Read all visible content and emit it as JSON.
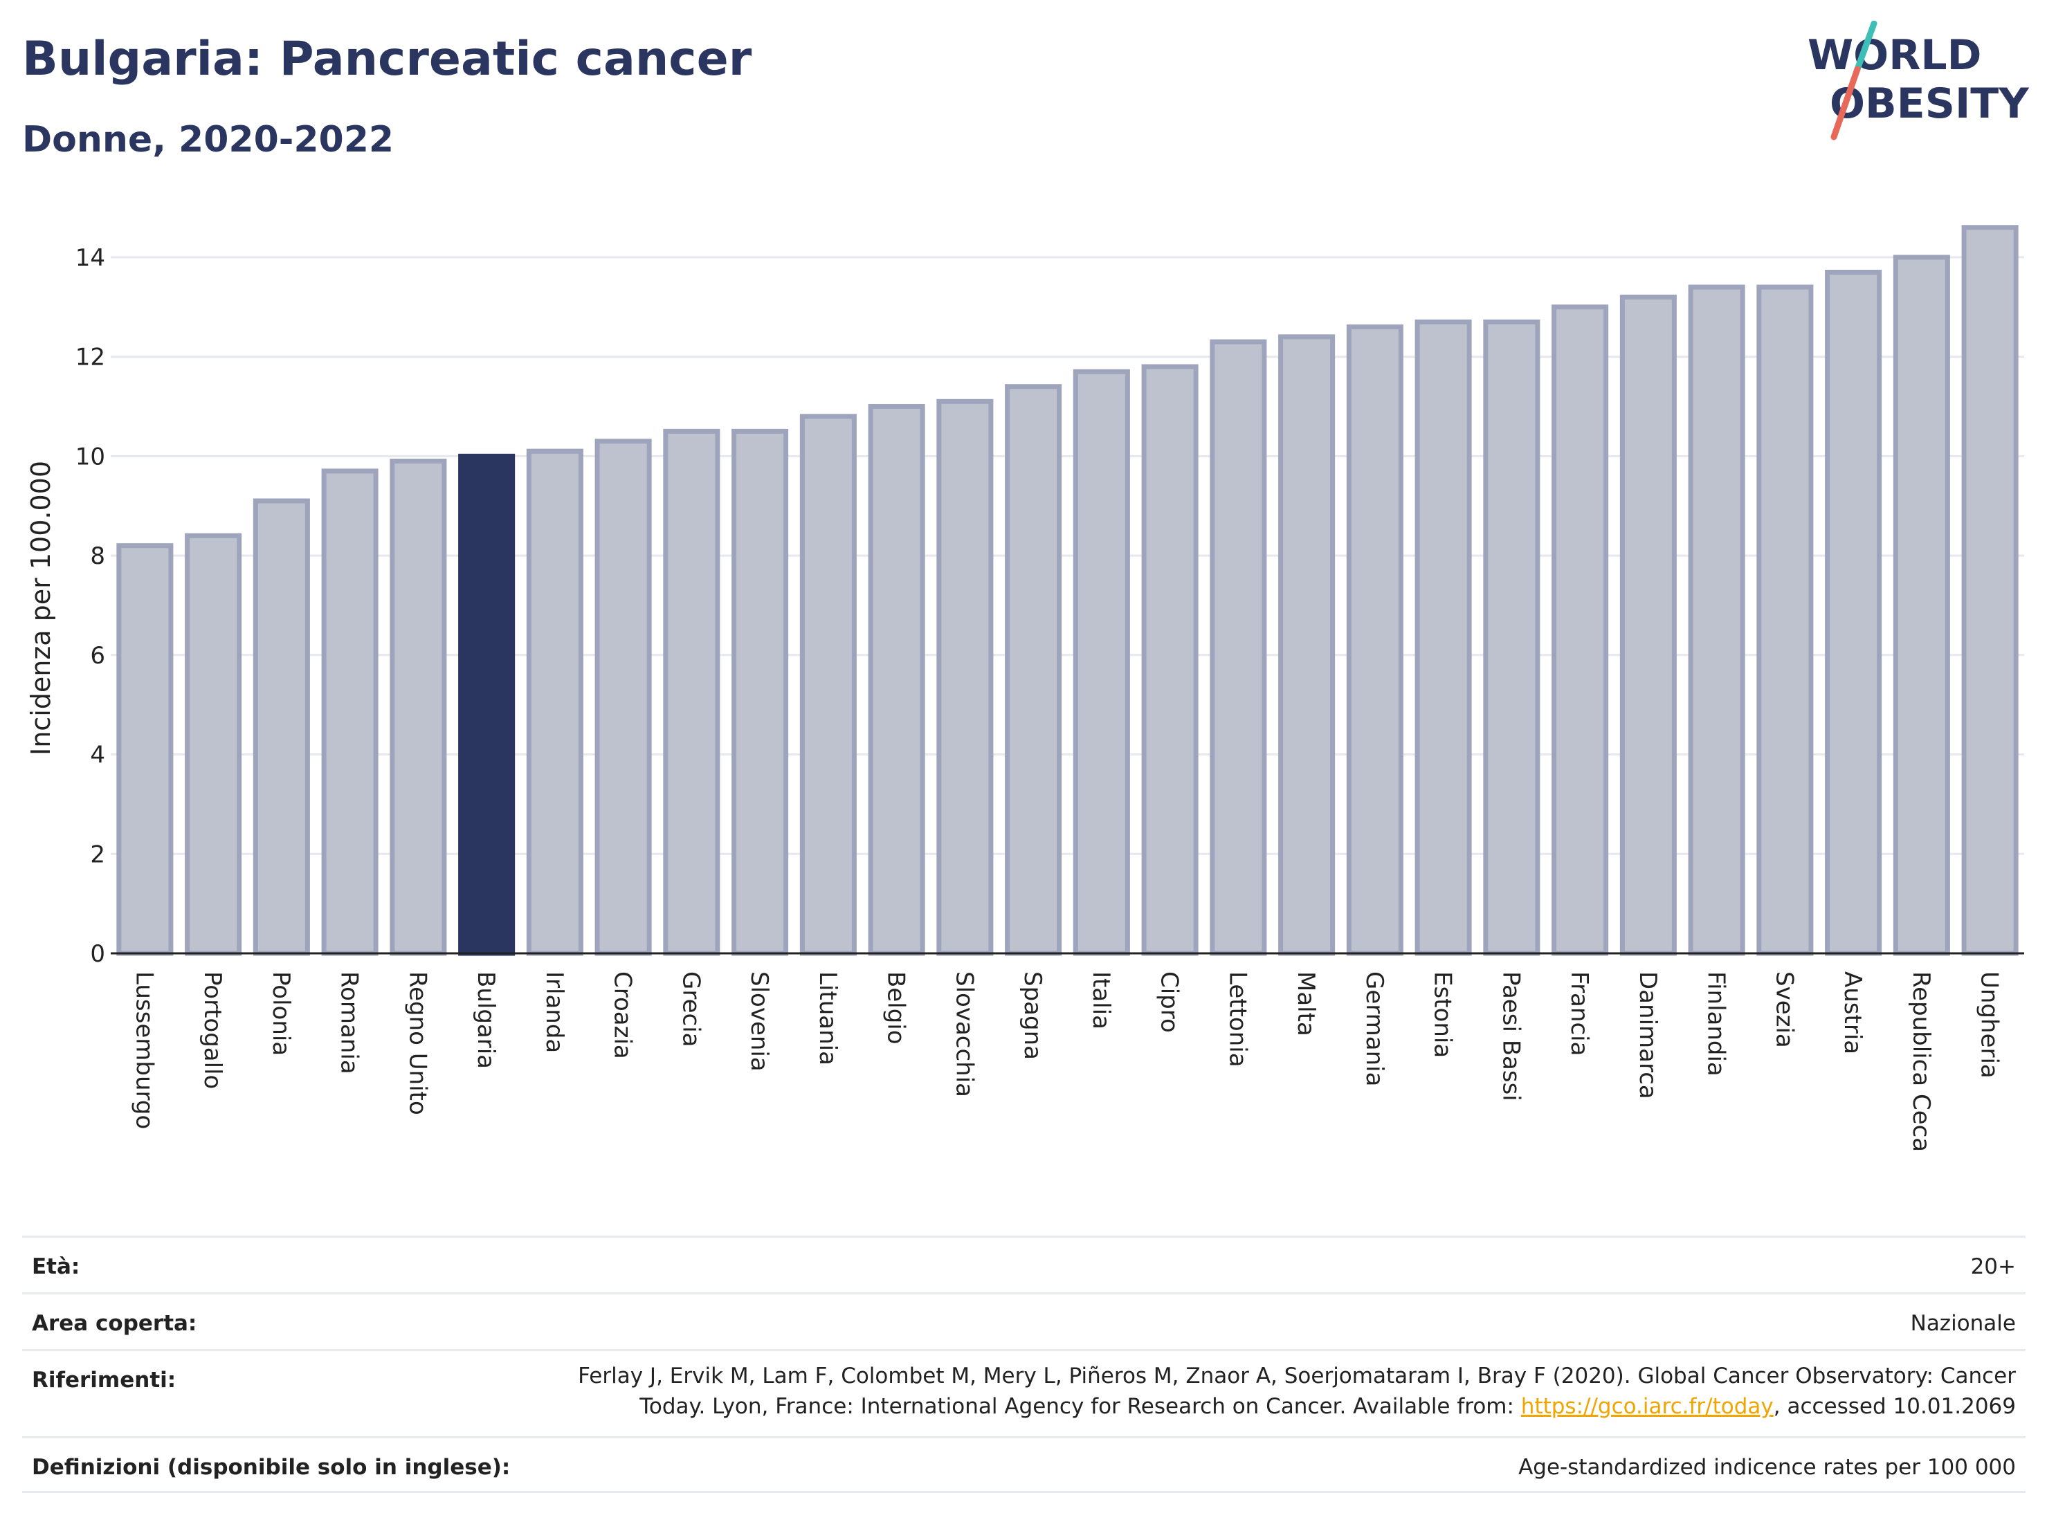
{
  "header": {
    "title": "Bulgaria: Pancreatic cancer",
    "subtitle": "Donne, 2020-2022"
  },
  "logo": {
    "line1": "WORLD",
    "line2": "OBESITY",
    "colors": {
      "text": "#2b3660",
      "slash_teal": "#3dbfb8",
      "slash_coral": "#e8685a"
    }
  },
  "chart_data": {
    "type": "bar",
    "title": "",
    "xlabel": "",
    "ylabel": "Incidenza per 100.000",
    "ylim": [
      0,
      15
    ],
    "yticks": [
      0,
      2,
      4,
      6,
      8,
      10,
      12,
      14
    ],
    "grid": true,
    "highlight": "Bulgaria",
    "colors": {
      "bar": "#bec2cf",
      "bar_border": "#9ea4bb",
      "highlight": "#2b3660",
      "grid": "#e6e8ee"
    },
    "categories": [
      "Lussemburgo",
      "Portogallo",
      "Polonia",
      "Romania",
      "Regno Unito",
      "Bulgaria",
      "Irlanda",
      "Croazia",
      "Grecia",
      "Slovenia",
      "Lituania",
      "Belgio",
      "Slovacchia",
      "Spagna",
      "Italia",
      "Cipro",
      "Lettonia",
      "Malta",
      "Germania",
      "Estonia",
      "Paesi Bassi",
      "Francia",
      "Danimarca",
      "Finlandia",
      "Svezia",
      "Austria",
      "Republica Ceca",
      "Ungheria"
    ],
    "values": [
      8.2,
      8.4,
      9.1,
      9.7,
      9.9,
      10.0,
      10.1,
      10.3,
      10.5,
      10.5,
      10.8,
      11.0,
      11.1,
      11.4,
      11.7,
      11.8,
      12.3,
      12.4,
      12.6,
      12.7,
      12.7,
      13.0,
      13.2,
      13.4,
      13.4,
      13.7,
      14.0,
      14.6
    ]
  },
  "info": {
    "age_label": "Età:",
    "age_value": "20+",
    "area_label": "Area coperta:",
    "area_value": "Nazionale",
    "ref_label": "Riferimenti:",
    "ref_text_1": "Ferlay J, Ervik M, Lam F, Colombet M, Mery L, Piñeros M, Znaor A, Soerjomataram I, Bray F (2020). Global Cancer Observatory: Cancer Today. Lyon, France: International Agency for Research on Cancer. Available from: ",
    "ref_link": "https://gco.iarc.fr/today",
    "ref_text_2": ", accessed 10.01.2069",
    "def_label": "Definizioni (disponibile solo in inglese):",
    "def_value": "Age-standardized indicence rates per 100 000"
  }
}
